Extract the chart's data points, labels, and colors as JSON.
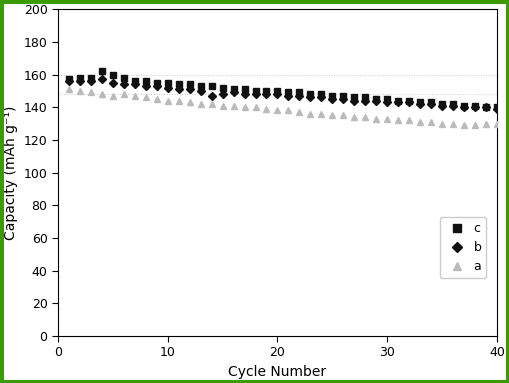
{
  "title": "",
  "xlabel": "Cycle Number",
  "ylabel": "Capacity (mAh g⁻¹)",
  "xlim": [
    0,
    40
  ],
  "ylim": [
    0,
    200
  ],
  "xticks": [
    0,
    10,
    20,
    30,
    40
  ],
  "yticks": [
    0,
    20,
    40,
    60,
    80,
    100,
    120,
    140,
    160,
    180,
    200
  ],
  "background_color": "#ffffff",
  "border_color": "#3a9a00",
  "series_c_cycles": [
    1,
    2,
    3,
    4,
    5,
    6,
    7,
    8,
    9,
    10,
    11,
    12,
    13,
    14,
    15,
    16,
    17,
    18,
    19,
    20,
    21,
    22,
    23,
    24,
    25,
    26,
    27,
    28,
    29,
    30,
    31,
    32,
    33,
    34,
    35,
    36,
    37,
    38,
    39,
    40
  ],
  "series_c_values": [
    157,
    158,
    158,
    162,
    160,
    158,
    156,
    156,
    155,
    155,
    154,
    154,
    153,
    153,
    152,
    151,
    151,
    150,
    150,
    150,
    149,
    149,
    148,
    148,
    147,
    147,
    146,
    146,
    145,
    145,
    144,
    144,
    143,
    143,
    142,
    142,
    141,
    141,
    140,
    140
  ],
  "series_b_cycles": [
    1,
    2,
    3,
    4,
    5,
    6,
    7,
    8,
    9,
    10,
    11,
    12,
    13,
    14,
    15,
    16,
    17,
    18,
    19,
    20,
    21,
    22,
    23,
    24,
    25,
    26,
    27,
    28,
    29,
    30,
    31,
    32,
    33,
    34,
    35,
    36,
    37,
    38,
    39,
    40
  ],
  "series_b_values": [
    156,
    156,
    156,
    157,
    155,
    154,
    154,
    153,
    153,
    152,
    151,
    151,
    150,
    147,
    148,
    149,
    148,
    148,
    148,
    148,
    147,
    147,
    146,
    146,
    145,
    145,
    144,
    144,
    144,
    143,
    143,
    143,
    142,
    142,
    141,
    141,
    140,
    140,
    140,
    139
  ],
  "series_a_cycles": [
    1,
    2,
    3,
    4,
    5,
    6,
    7,
    8,
    9,
    10,
    11,
    12,
    13,
    14,
    15,
    16,
    17,
    18,
    19,
    20,
    21,
    22,
    23,
    24,
    25,
    26,
    27,
    28,
    29,
    30,
    31,
    32,
    33,
    34,
    35,
    36,
    37,
    38,
    39,
    40
  ],
  "series_a_values": [
    151,
    150,
    149,
    148,
    147,
    148,
    147,
    146,
    145,
    144,
    144,
    143,
    142,
    142,
    141,
    141,
    140,
    140,
    139,
    138,
    138,
    137,
    136,
    136,
    135,
    135,
    134,
    134,
    133,
    133,
    132,
    132,
    131,
    131,
    130,
    130,
    129,
    129,
    130,
    130
  ],
  "color_c": "#111111",
  "color_b": "#111111",
  "color_a": "#bbbbbb",
  "marker_c": "s",
  "marker_b": "D",
  "marker_a": "^",
  "markersize_c": 5,
  "markersize_b": 4,
  "markersize_a": 5,
  "dotted_line_top_y": 160,
  "dotted_line_bot_y": 148
}
